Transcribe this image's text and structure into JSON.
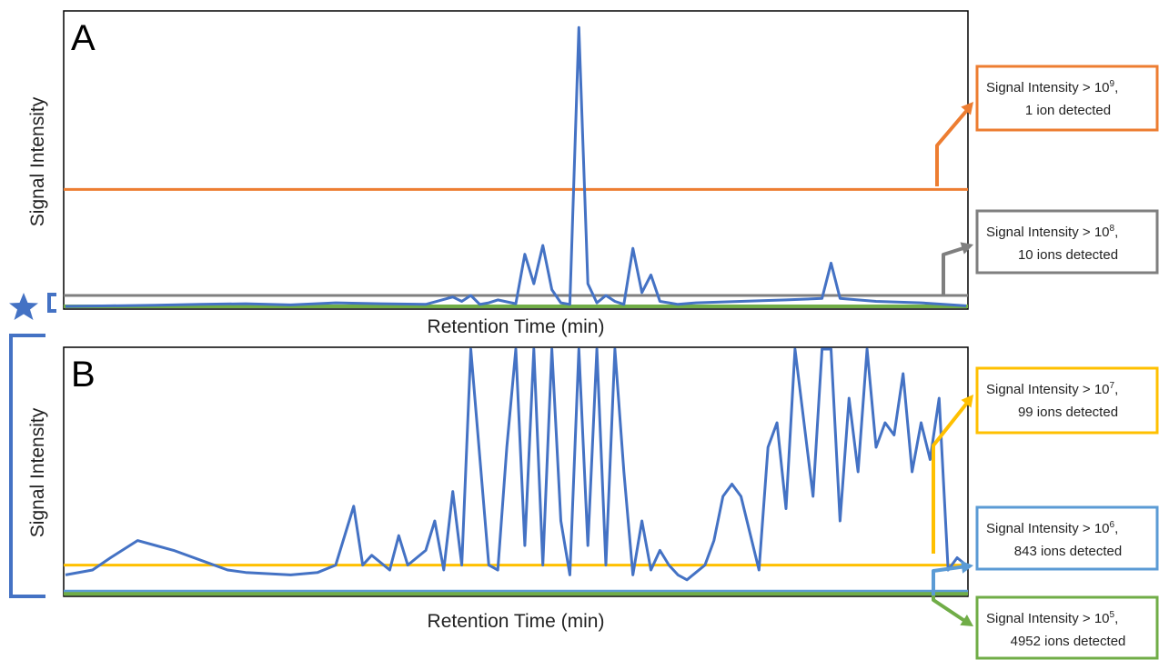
{
  "colors": {
    "trace": "#4472c4",
    "orange": "#ed7d31",
    "gray": "#7f7f7f",
    "yellow": "#ffc000",
    "lightblue": "#5b9bd5",
    "green": "#70ad47"
  },
  "chart_data": [
    {
      "type": "line",
      "panel": "A",
      "xlabel": "Retention Time (min)",
      "ylabel": "Signal Intensity",
      "grid": false,
      "ylim": [
        0,
        100
      ],
      "series": [
        {
          "x": [
            0,
            5,
            10,
            15,
            20,
            25,
            30,
            35,
            40,
            43,
            44,
            45,
            46,
            47,
            48,
            50,
            51,
            52,
            53,
            54,
            55,
            56,
            57,
            58,
            59,
            60,
            61,
            62,
            63,
            64,
            65,
            66,
            67,
            68,
            70,
            75,
            80,
            84,
            85,
            86,
            90,
            95,
            100
          ],
          "values": [
            0.3,
            0.5,
            0.7,
            1.0,
            1.2,
            0.8,
            1.5,
            1.2,
            1.0,
            3.5,
            2.0,
            4.0,
            1.0,
            1.5,
            2.5,
            1.2,
            18.0,
            8.0,
            21.0,
            6.0,
            1.5,
            1.0,
            95.0,
            8.0,
            1.5,
            4.0,
            2.0,
            1.0,
            20.0,
            5.0,
            11.0,
            2.0,
            1.5,
            1.0,
            1.5,
            2.0,
            2.5,
            3.0,
            15.0,
            3.0,
            2.0,
            1.5,
            0.5
          ]
        }
      ],
      "thresholds": [
        {
          "name": "1e9",
          "level": 40,
          "color": "orange"
        },
        {
          "name": "1e8",
          "level": 4,
          "color": "gray"
        },
        {
          "name": "1e5",
          "level": 0.3,
          "color": "green"
        }
      ]
    },
    {
      "type": "line",
      "panel": "B",
      "xlabel": "Retention Time (min)",
      "ylabel": "Signal Intensity",
      "grid": false,
      "ylim": [
        0,
        100
      ],
      "series": [
        {
          "x": [
            0,
            3,
            5,
            8,
            10,
            12,
            15,
            18,
            20,
            25,
            28,
            30,
            32,
            33,
            34,
            36,
            37,
            38,
            40,
            41,
            42,
            43,
            44,
            45,
            47,
            48,
            49,
            50,
            51,
            52,
            53,
            54,
            55,
            56,
            57,
            58,
            59,
            60,
            61,
            62,
            63,
            64,
            65,
            66,
            67,
            68,
            69,
            70,
            71,
            72,
            73,
            74,
            75,
            76,
            77,
            78,
            79,
            80,
            81,
            82,
            83,
            84,
            85,
            86,
            87,
            88,
            89,
            90,
            91,
            92,
            93,
            94,
            95,
            96,
            97,
            98,
            99,
            100
          ],
          "values": [
            8,
            10,
            15,
            22,
            20,
            18,
            14,
            10,
            9,
            8,
            9,
            12,
            36,
            12,
            16,
            10,
            24,
            12,
            18,
            30,
            10,
            42,
            12,
            100,
            12,
            10,
            60,
            100,
            20,
            100,
            12,
            100,
            30,
            8,
            100,
            20,
            100,
            12,
            100,
            50,
            8,
            30,
            10,
            18,
            12,
            8,
            6,
            9,
            12,
            22,
            40,
            45,
            40,
            25,
            10,
            60,
            70,
            35,
            100,
            70,
            40,
            100,
            100,
            30,
            80,
            50,
            100,
            60,
            70,
            65,
            90,
            50,
            70,
            55,
            80,
            10,
            15,
            12
          ]
        }
      ],
      "thresholds": [
        {
          "name": "1e7",
          "level": 12,
          "color": "yellow"
        },
        {
          "name": "1e6",
          "level": 1.2,
          "color": "lightblue"
        },
        {
          "name": "1e5",
          "level": 0.3,
          "color": "green"
        }
      ]
    }
  ],
  "panel_a": {
    "letter": "A",
    "ylabel": "Signal Intensity",
    "xlabel": "Retention Time (min)"
  },
  "panel_b": {
    "letter": "B",
    "ylabel": "Signal Intensity",
    "xlabel": "Retention Time (min)"
  },
  "callouts": [
    {
      "line1": "Signal Intensity > 10",
      "exp": "9",
      "line2": "1 ion detected",
      "color": "orange"
    },
    {
      "line1": "Signal Intensity > 10",
      "exp": "8",
      "line2": "10 ions detected",
      "color": "gray"
    },
    {
      "line1": "Signal Intensity > 10",
      "exp": "7",
      "line2": "99 ions detected",
      "color": "yellow"
    },
    {
      "line1": "Signal Intensity > 10",
      "exp": "6",
      "line2": "843 ions detected",
      "color": "lightblue"
    },
    {
      "line1": "Signal Intensity > 10",
      "exp": "5",
      "line2": "4952 ions detected",
      "color": "green"
    }
  ],
  "zoom_indicator": {
    "icon": "star-icon"
  }
}
